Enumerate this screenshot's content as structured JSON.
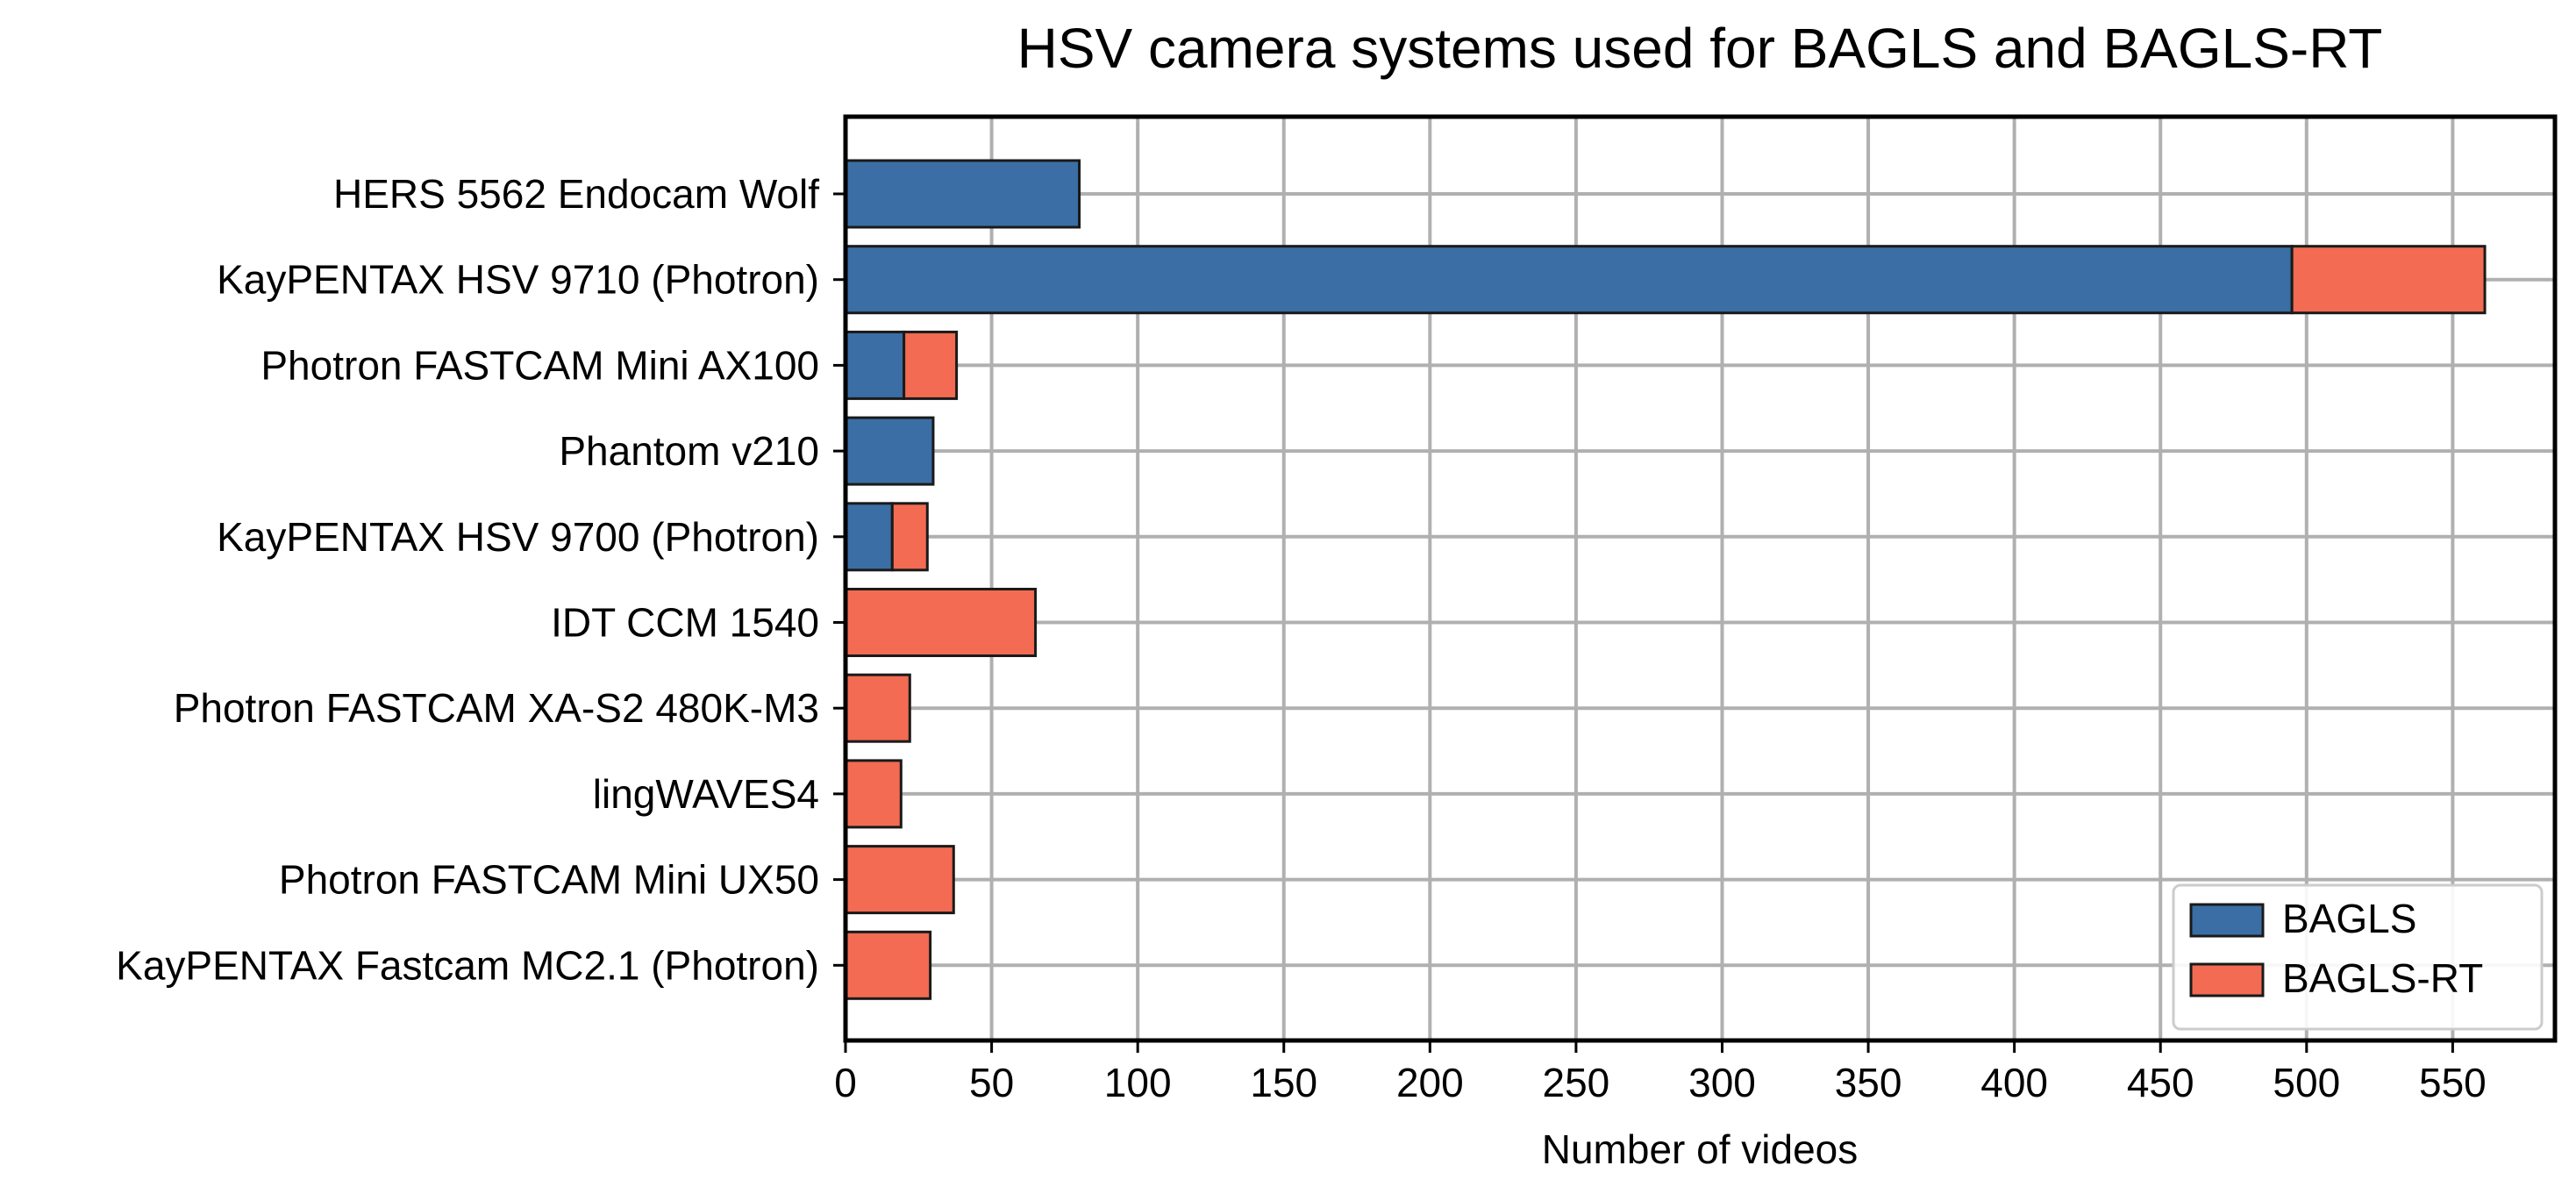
{
  "chart_data": {
    "type": "bar",
    "orientation": "horizontal",
    "stacked": true,
    "title": "HSV camera systems used for BAGLS and BAGLS-RT",
    "xlabel": "Number of videos",
    "ylabel": "",
    "xlim": [
      0,
      585
    ],
    "xticks": [
      0,
      50,
      100,
      150,
      200,
      250,
      300,
      350,
      400,
      450,
      500,
      550
    ],
    "grid": true,
    "legend_position": "lower-right",
    "categories": [
      "HERS 5562 Endocam Wolf",
      "KayPENTAX HSV 9710 (Photron)",
      "Photron FASTCAM Mini AX100",
      "Phantom v210",
      "KayPENTAX HSV 9700 (Photron)",
      "IDT CCM 1540",
      "Photron FASTCAM XA-S2 480K-M3",
      "lingWAVES4",
      "Photron FASTCAM Mini UX50",
      "KayPENTAX Fastcam MC2.1 (Photron)"
    ],
    "series": [
      {
        "name": "BAGLS",
        "color": "#3a6ea5",
        "values": [
          80,
          495,
          20,
          30,
          16,
          0,
          0,
          0,
          0,
          0
        ]
      },
      {
        "name": "BAGLS-RT",
        "color": "#f26b52",
        "values": [
          0,
          66,
          18,
          0,
          12,
          65,
          22,
          19,
          37,
          29
        ]
      }
    ]
  }
}
